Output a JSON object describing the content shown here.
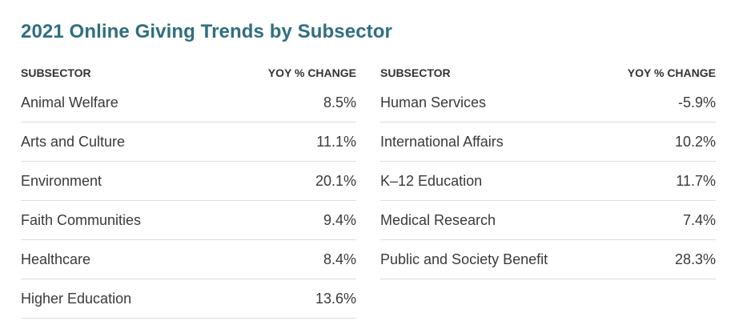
{
  "title": "2021 Online Giving Trends by Subsector",
  "chart_data": {
    "type": "table",
    "title": "2021 Online Giving Trends by Subsector",
    "columns": [
      "SUBSECTOR",
      "YOY % CHANGE"
    ],
    "left_table": {
      "headers": {
        "subsector": "SUBSECTOR",
        "change": "YOY % CHANGE"
      },
      "rows": [
        {
          "subsector": "Animal Welfare",
          "change": "8.5%"
        },
        {
          "subsector": "Arts and Culture",
          "change": "11.1%"
        },
        {
          "subsector": "Environment",
          "change": "20.1%"
        },
        {
          "subsector": "Faith Communities",
          "change": "9.4%"
        },
        {
          "subsector": "Healthcare",
          "change": "8.4%"
        },
        {
          "subsector": "Higher Education",
          "change": "13.6%"
        }
      ]
    },
    "right_table": {
      "headers": {
        "subsector": "SUBSECTOR",
        "change": "YOY % CHANGE"
      },
      "rows": [
        {
          "subsector": "Human Services",
          "change": "-5.9%"
        },
        {
          "subsector": "International Affairs",
          "change": "10.2%"
        },
        {
          "subsector": "K–12 Education",
          "change": "11.7%"
        },
        {
          "subsector": "Medical Research",
          "change": "7.4%"
        },
        {
          "subsector": "Public and Society Benefit",
          "change": "28.3%"
        }
      ]
    }
  }
}
